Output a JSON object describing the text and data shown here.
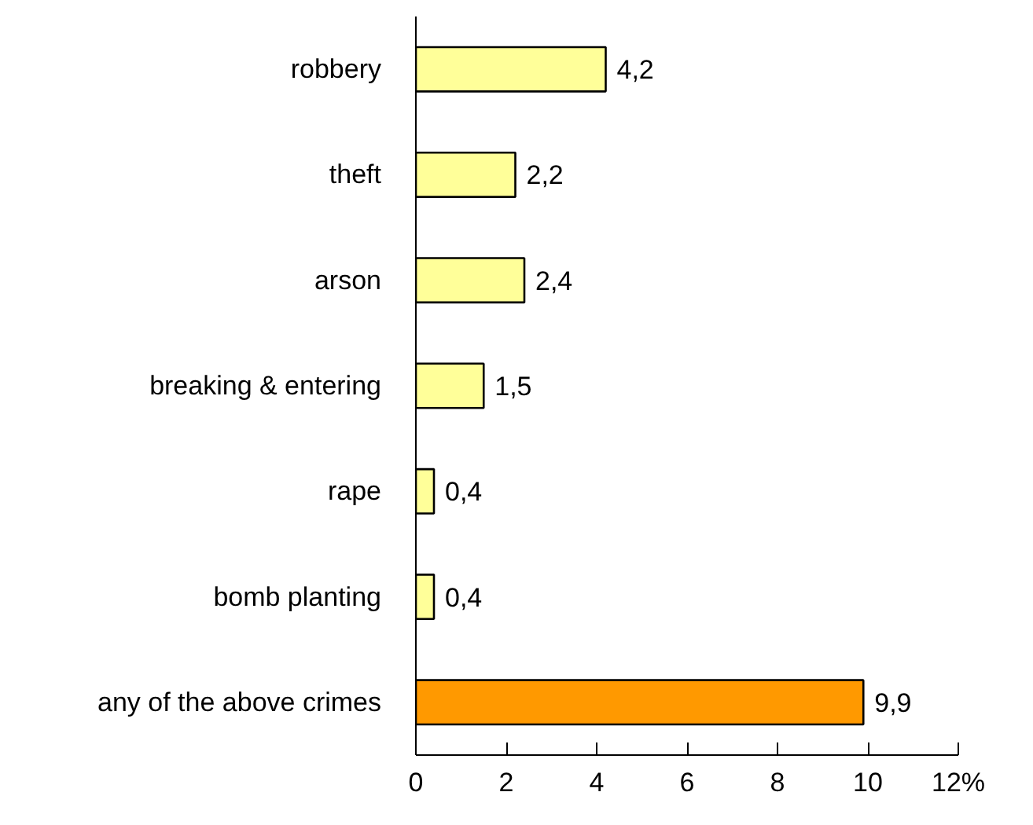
{
  "chart_data": {
    "type": "bar",
    "orientation": "horizontal",
    "categories": [
      "robbery",
      "theft",
      "arson",
      "breaking & entering",
      "rape",
      "bomb planting",
      "any of the above crimes"
    ],
    "values": [
      4.2,
      2.2,
      2.4,
      1.5,
      0.4,
      0.4,
      9.9
    ],
    "value_labels": [
      "4,2",
      "2,2",
      "2,4",
      "1,5",
      "0,4",
      "0,4",
      "9,9"
    ],
    "colors": [
      "#ffff99",
      "#ffff99",
      "#ffff99",
      "#ffff99",
      "#ffff99",
      "#ffff99",
      "#ff9900"
    ],
    "xlim": [
      0,
      12
    ],
    "xticks": [
      0,
      2,
      4,
      6,
      8,
      10,
      {
        "value": 12,
        "label": "12%"
      }
    ],
    "grid": false
  }
}
